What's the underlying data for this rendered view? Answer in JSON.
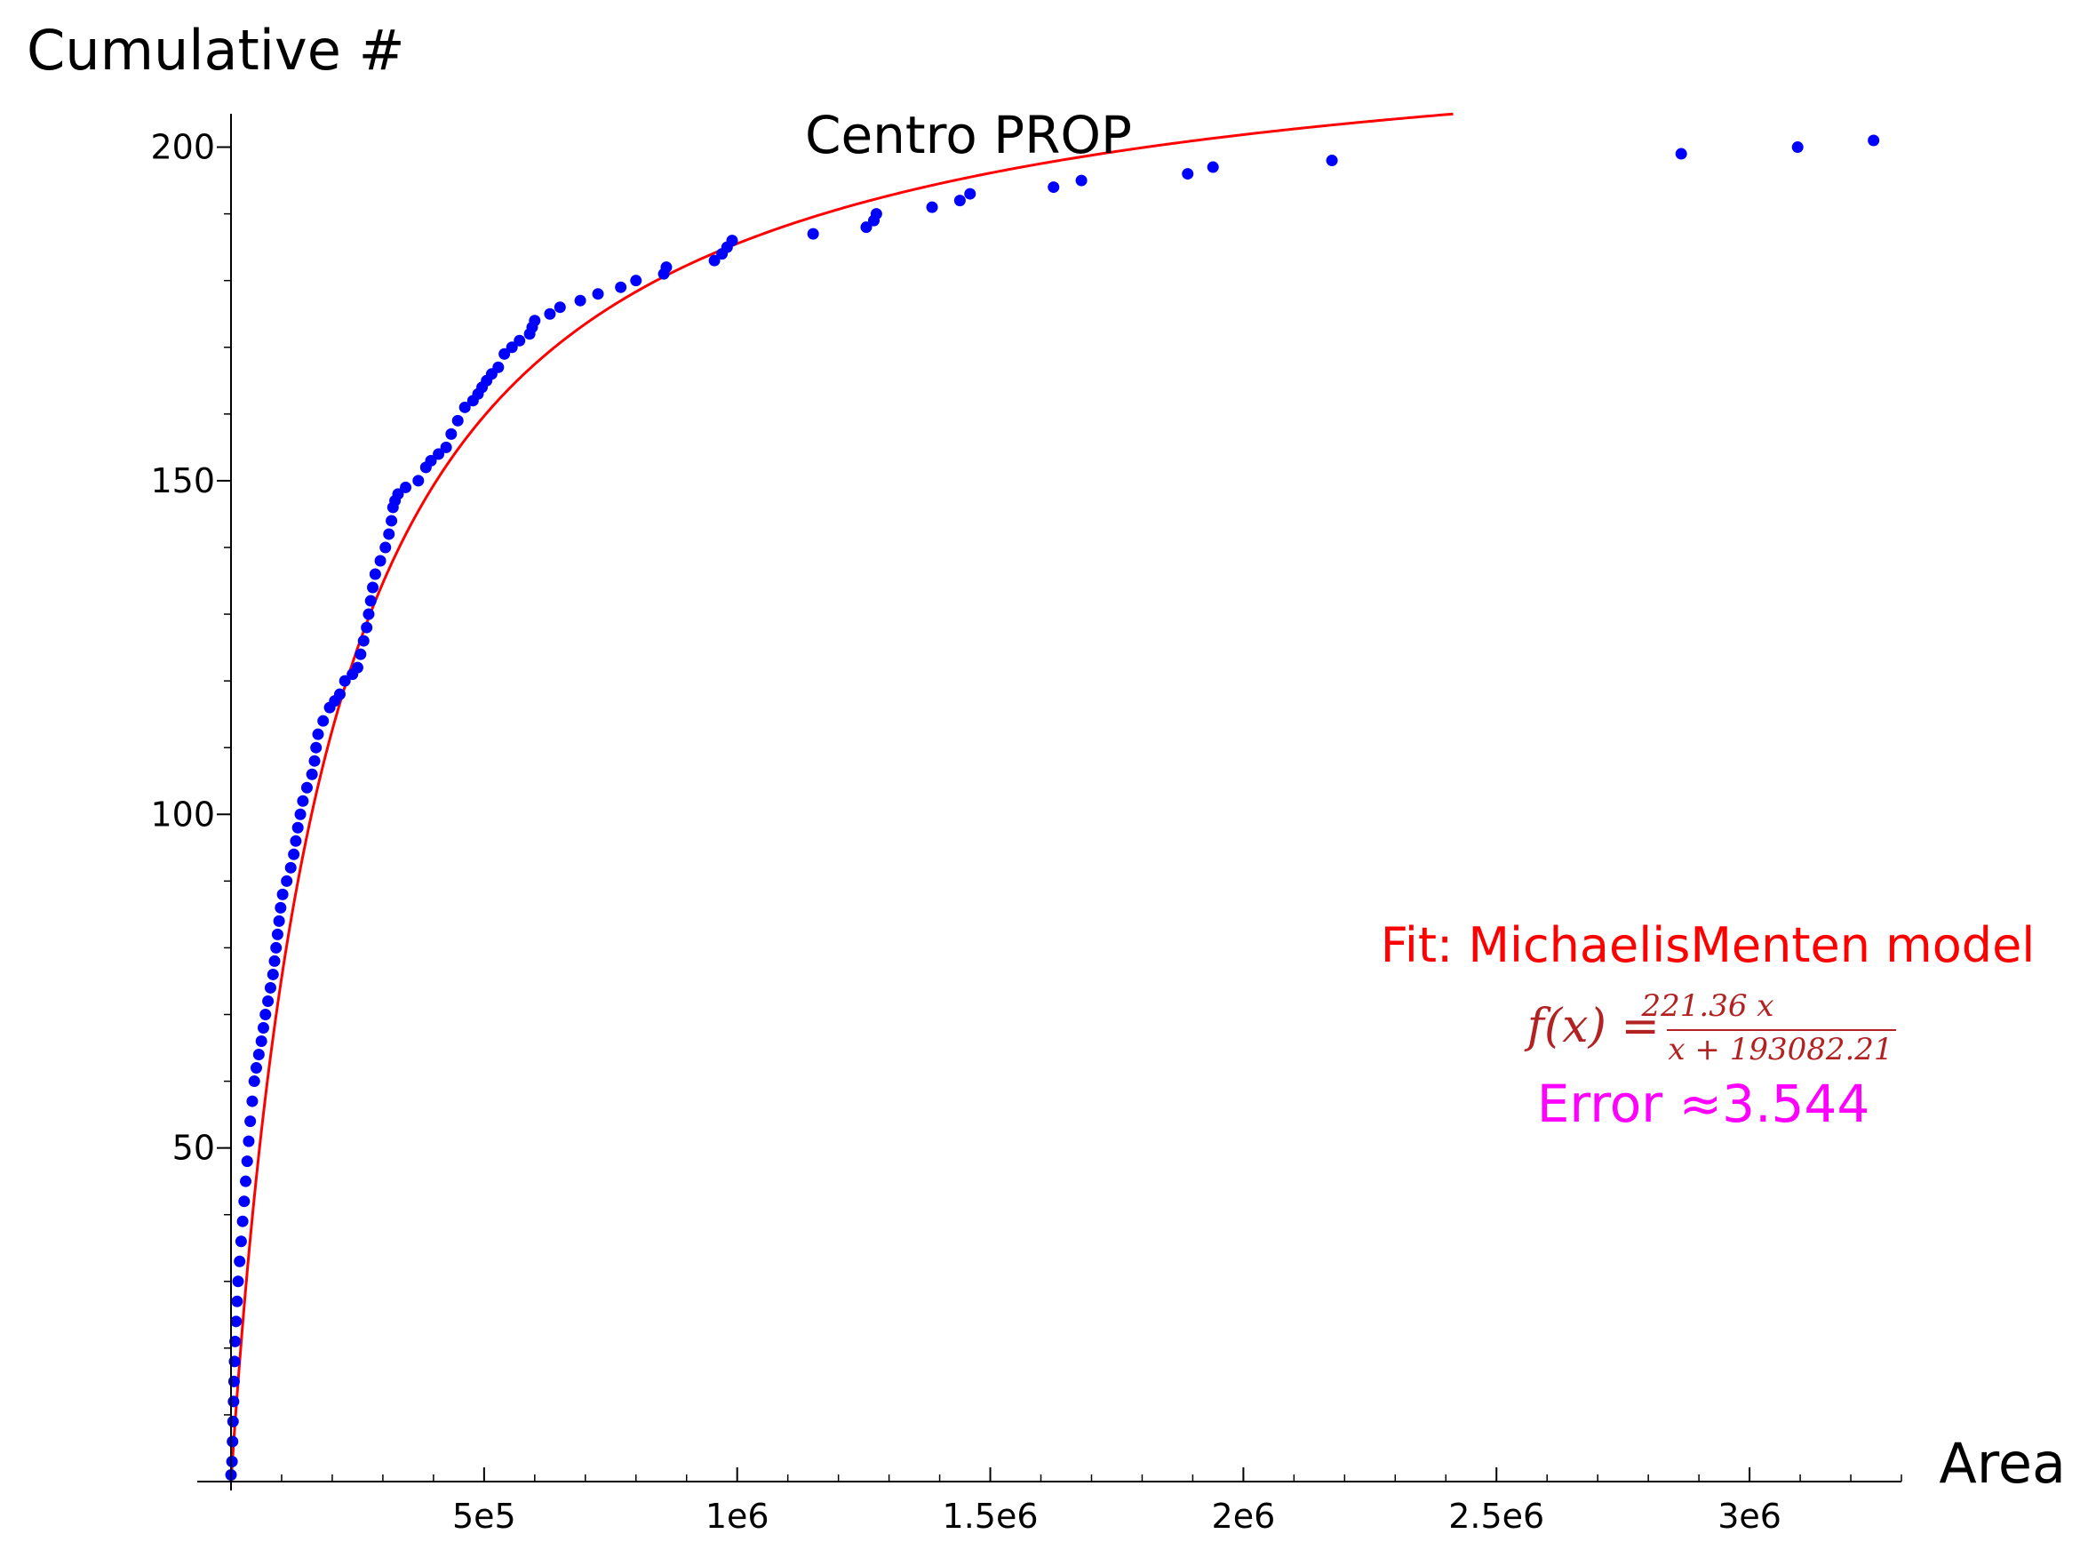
{
  "chart_data": {
    "type": "scatter",
    "title": "Centro PROP",
    "xlabel": "Area",
    "ylabel": "Cumulative #",
    "xlim": [
      0,
      3300000
    ],
    "ylim": [
      0,
      205
    ],
    "grid": false,
    "x_ticks": [
      {
        "value": 500000,
        "label": "5e5"
      },
      {
        "value": 1000000,
        "label": "1e6"
      },
      {
        "value": 1500000,
        "label": "1.5e6"
      },
      {
        "value": 2000000,
        "label": "2e6"
      },
      {
        "value": 2500000,
        "label": "2.5e6"
      },
      {
        "value": 3000000,
        "label": "3e6"
      }
    ],
    "x_minor_step": 100000,
    "y_ticks": [
      {
        "value": 50,
        "label": "50"
      },
      {
        "value": 100,
        "label": "100"
      },
      {
        "value": 150,
        "label": "150"
      },
      {
        "value": 200,
        "label": "200"
      }
    ],
    "y_minor_step": 10,
    "series": [
      {
        "kind": "points",
        "color": "#0000ff",
        "points": [
          [
            0,
            1
          ],
          [
            2000,
            3
          ],
          [
            3000,
            6
          ],
          [
            4000,
            9
          ],
          [
            5000,
            12
          ],
          [
            6000,
            15
          ],
          [
            7000,
            18
          ],
          [
            8000,
            21
          ],
          [
            10000,
            24
          ],
          [
            12000,
            27
          ],
          [
            14000,
            30
          ],
          [
            17000,
            33
          ],
          [
            20000,
            36
          ],
          [
            23000,
            39
          ],
          [
            26000,
            42
          ],
          [
            29000,
            45
          ],
          [
            32000,
            48
          ],
          [
            35000,
            51
          ],
          [
            38000,
            54
          ],
          [
            42000,
            57
          ],
          [
            46000,
            60
          ],
          [
            50000,
            62
          ],
          [
            55000,
            64
          ],
          [
            60000,
            66
          ],
          [
            64000,
            68
          ],
          [
            68000,
            70
          ],
          [
            73000,
            72
          ],
          [
            78000,
            74
          ],
          [
            83000,
            76
          ],
          [
            86000,
            78
          ],
          [
            89000,
            80
          ],
          [
            92000,
            82
          ],
          [
            95000,
            84
          ],
          [
            98000,
            86
          ],
          [
            102000,
            88
          ],
          [
            110000,
            90
          ],
          [
            118000,
            92
          ],
          [
            124000,
            94
          ],
          [
            128000,
            96
          ],
          [
            132000,
            98
          ],
          [
            137000,
            100
          ],
          [
            142000,
            102
          ],
          [
            150000,
            104
          ],
          [
            160000,
            106
          ],
          [
            165000,
            108
          ],
          [
            168000,
            110
          ],
          [
            172000,
            112
          ],
          [
            182000,
            114
          ],
          [
            195000,
            116
          ],
          [
            205000,
            117
          ],
          [
            215000,
            118
          ],
          [
            225000,
            120
          ],
          [
            240000,
            121
          ],
          [
            250000,
            122
          ],
          [
            256000,
            124
          ],
          [
            262000,
            126
          ],
          [
            268000,
            128
          ],
          [
            272000,
            130
          ],
          [
            276000,
            132
          ],
          [
            280000,
            134
          ],
          [
            285000,
            136
          ],
          [
            295000,
            138
          ],
          [
            305000,
            140
          ],
          [
            312000,
            142
          ],
          [
            317000,
            144
          ],
          [
            320000,
            146
          ],
          [
            324000,
            147
          ],
          [
            330000,
            148
          ],
          [
            345000,
            149
          ],
          [
            370000,
            150
          ],
          [
            385000,
            152
          ],
          [
            395000,
            153
          ],
          [
            410000,
            154
          ],
          [
            425000,
            155
          ],
          [
            435000,
            157
          ],
          [
            448000,
            159
          ],
          [
            462000,
            161
          ],
          [
            478000,
            162
          ],
          [
            488000,
            163
          ],
          [
            496000,
            164
          ],
          [
            505000,
            165
          ],
          [
            515000,
            166
          ],
          [
            528000,
            167
          ],
          [
            540000,
            169
          ],
          [
            555000,
            170
          ],
          [
            570000,
            171
          ],
          [
            590000,
            172
          ],
          [
            595000,
            173
          ],
          [
            600000,
            174
          ],
          [
            630000,
            175
          ],
          [
            650000,
            176
          ],
          [
            690000,
            177
          ],
          [
            725000,
            178
          ],
          [
            770000,
            179
          ],
          [
            800000,
            180
          ],
          [
            855000,
            181
          ],
          [
            860000,
            182
          ],
          [
            955000,
            183
          ],
          [
            970000,
            184
          ],
          [
            980000,
            185
          ],
          [
            990000,
            186
          ],
          [
            1150000,
            187
          ],
          [
            1255000,
            188
          ],
          [
            1270000,
            189
          ],
          [
            1275000,
            190
          ],
          [
            1385000,
            191
          ],
          [
            1440000,
            192
          ],
          [
            1460000,
            193
          ],
          [
            1625000,
            194
          ],
          [
            1680000,
            195
          ],
          [
            1890000,
            196
          ],
          [
            1940000,
            197
          ],
          [
            2175000,
            198
          ],
          [
            2865000,
            199
          ],
          [
            3095000,
            200
          ],
          [
            3245000,
            201
          ]
        ]
      },
      {
        "kind": "curve",
        "name": "Fit: MichaelisMenten model",
        "color": "#ff0000",
        "vmax": 221.36,
        "km": 193082.21,
        "x_range": [
          0,
          3300000
        ]
      }
    ],
    "annotations": {
      "fit_label": "Fit: MichaelisMenten model",
      "fit_label_color": "#ff0000",
      "formula_lhs": "f(x) =",
      "formula_numerator": "221.36 x",
      "formula_denominator": "x + 193082.21",
      "formula_color": "#b22222",
      "error_label": "Error ≈3.544",
      "error_label_color": "#ff00ff"
    }
  }
}
